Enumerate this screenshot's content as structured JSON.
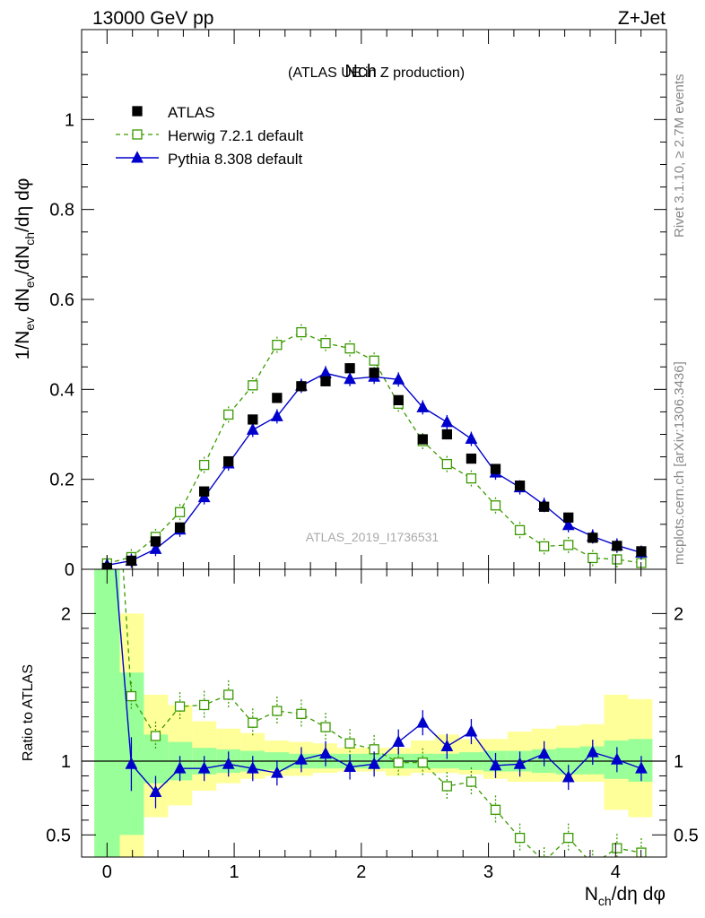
{
  "header": {
    "left": "13000 GeV pp",
    "right": "Z+Jet",
    "side_top": "Rivet 3.1.10, ≥ 2.7M events",
    "side_bottom": "mcplots.cern.ch [arXiv:1306.3436]"
  },
  "colors": {
    "atlas": "#000000",
    "herwig": "#3a9a00",
    "pythia": "#0000cc",
    "band_inner": "#99ff99",
    "band_outer": "#ffff99"
  },
  "chart_data": [
    {
      "type": "scatter",
      "title": "Nch",
      "subtitle": "(ATLAS UE in Z production)",
      "watermark": "ATLAS_2019_I1736531",
      "ylabel": "1/N_ev dN_ev/dN_ch/dη dφ",
      "xlim": [
        -0.2,
        4.4
      ],
      "ylim": [
        0,
        1.2
      ],
      "yticks": [
        0,
        0.2,
        0.4,
        0.6,
        0.8,
        1
      ],
      "ytick_labels": [
        "0",
        "0.2",
        "0.4",
        "0.6",
        "0.8",
        "1"
      ],
      "legend_position": "top-left",
      "x": [
        0.0,
        0.191,
        0.382,
        0.573,
        0.764,
        0.955,
        1.146,
        1.337,
        1.528,
        1.719,
        1.91,
        2.101,
        2.292,
        2.483,
        2.674,
        2.865,
        3.056,
        3.247,
        3.438,
        3.629,
        3.82,
        4.011,
        4.202
      ],
      "series": [
        {
          "name": "ATLAS",
          "style": "data",
          "values": [
            0.003,
            0.019,
            0.062,
            0.093,
            0.173,
            0.24,
            0.333,
            0.381,
            0.407,
            0.418,
            0.447,
            0.437,
            0.376,
            0.289,
            0.3,
            0.246,
            0.223,
            0.186,
            0.139,
            0.115,
            0.07,
            0.052,
            0.04
          ]
        },
        {
          "name": "Herwig 7.2.1 default",
          "style": "dashed-open-square",
          "values": [
            0.013,
            0.027,
            0.072,
            0.127,
            0.232,
            0.344,
            0.409,
            0.499,
            0.527,
            0.503,
            0.491,
            0.464,
            0.368,
            0.285,
            0.234,
            0.202,
            0.142,
            0.087,
            0.051,
            0.054,
            0.025,
            0.022,
            0.014
          ]
        },
        {
          "name": "Pythia 8.308 default",
          "style": "solid-filled-triangle",
          "values": [
            0.009,
            0.019,
            0.045,
            0.088,
            0.16,
            0.235,
            0.31,
            0.34,
            0.408,
            0.436,
            0.423,
            0.428,
            0.422,
            0.36,
            0.327,
            0.29,
            0.215,
            0.182,
            0.143,
            0.098,
            0.073,
            0.053,
            0.037
          ]
        }
      ]
    },
    {
      "type": "line",
      "ylabel": "Ratio to ATLAS",
      "xlabel": "N_ch/dη dφ",
      "xlim": [
        -0.2,
        4.4
      ],
      "ylim": [
        0.35,
        2.3
      ],
      "xticks": [
        0,
        1,
        2,
        3,
        4
      ],
      "xtick_labels": [
        "0",
        "1",
        "2",
        "3",
        "4"
      ],
      "yticks": [
        0.5,
        1,
        2
      ],
      "ytick_labels": [
        "0.5",
        "1",
        "2"
      ],
      "reference_line": 1,
      "x": [
        0.0,
        0.191,
        0.382,
        0.573,
        0.764,
        0.955,
        1.146,
        1.337,
        1.528,
        1.719,
        1.91,
        2.101,
        2.292,
        2.483,
        2.674,
        2.865,
        3.056,
        3.247,
        3.438,
        3.629,
        3.82,
        4.011,
        4.202
      ],
      "bands": {
        "edges": [
          -0.1,
          0.1,
          0.29,
          0.48,
          0.67,
          0.86,
          1.05,
          1.24,
          1.43,
          1.62,
          1.81,
          2.0,
          2.19,
          2.39,
          2.58,
          2.77,
          2.96,
          3.15,
          3.34,
          3.53,
          3.72,
          3.91,
          4.1,
          4.29
        ],
        "inner_low": [
          0.0,
          0.5,
          0.85,
          0.87,
          0.91,
          0.92,
          0.93,
          0.94,
          0.95,
          0.95,
          0.95,
          0.95,
          0.95,
          0.95,
          0.95,
          0.94,
          0.93,
          0.93,
          0.92,
          0.91,
          0.91,
          0.88,
          0.86
        ],
        "inner_high": [
          3.0,
          1.6,
          1.18,
          1.13,
          1.09,
          1.08,
          1.07,
          1.06,
          1.05,
          1.05,
          1.05,
          1.05,
          1.05,
          1.05,
          1.05,
          1.06,
          1.07,
          1.07,
          1.08,
          1.09,
          1.1,
          1.14,
          1.15
        ],
        "outer_low": [
          0.0,
          0.0,
          0.62,
          0.7,
          0.8,
          0.85,
          0.88,
          0.9,
          0.9,
          0.92,
          0.93,
          0.93,
          0.9,
          0.92,
          0.92,
          0.91,
          0.88,
          0.86,
          0.86,
          0.86,
          0.86,
          0.67,
          0.62
        ],
        "outer_high": [
          3.0,
          2.0,
          1.45,
          1.38,
          1.27,
          1.22,
          1.19,
          1.14,
          1.13,
          1.12,
          1.09,
          1.09,
          1.09,
          1.14,
          1.18,
          1.15,
          1.15,
          1.2,
          1.22,
          1.24,
          1.25,
          1.45,
          1.42
        ]
      },
      "series": [
        {
          "name": "Herwig 7.2.1 default",
          "values": [
            4.0,
            1.44,
            1.17,
            1.37,
            1.38,
            1.45,
            1.26,
            1.34,
            1.32,
            1.23,
            1.12,
            1.08,
            0.99,
            0.99,
            0.83,
            0.86,
            0.67,
            0.48,
            0.32,
            0.48,
            0.3,
            0.41,
            0.38
          ]
        },
        {
          "name": "Pythia 8.308 default",
          "values": [
            3.0,
            0.98,
            0.79,
            0.95,
            0.95,
            0.98,
            0.95,
            0.92,
            1.01,
            1.05,
            0.96,
            0.98,
            1.13,
            1.26,
            1.1,
            1.2,
            0.97,
            0.98,
            1.05,
            0.89,
            1.06,
            1.01,
            0.95
          ]
        }
      ]
    }
  ]
}
